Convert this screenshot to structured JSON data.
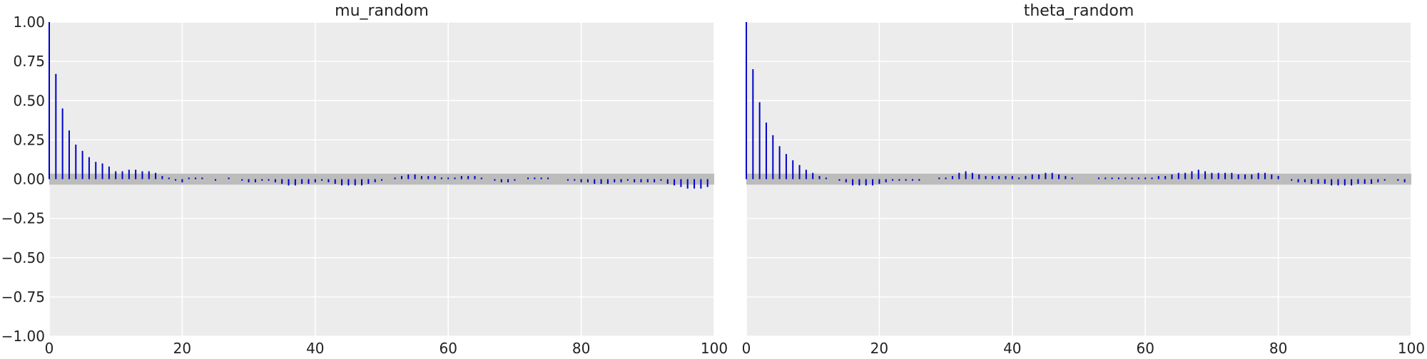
{
  "chart_data": [
    {
      "type": "bar",
      "title": "mu_random",
      "xlabel": "",
      "ylabel": "",
      "xlim": [
        0,
        100
      ],
      "ylim": [
        -1.0,
        1.0
      ],
      "xticks": [
        "0",
        "20",
        "40",
        "60",
        "80",
        "100"
      ],
      "yticks": [
        "1.00",
        "0.75",
        "0.50",
        "0.25",
        "0.00",
        "−0.25",
        "−0.50",
        "−0.75",
        "−1.00"
      ],
      "grid": true,
      "confidence_band": [
        -0.035,
        0.035
      ],
      "lags": [
        0,
        1,
        2,
        3,
        4,
        5,
        6,
        7,
        8,
        9,
        10,
        11,
        12,
        13,
        14,
        15,
        16,
        17,
        18,
        19,
        20,
        21,
        22,
        23,
        24,
        25,
        26,
        27,
        28,
        29,
        30,
        31,
        32,
        33,
        34,
        35,
        36,
        37,
        38,
        39,
        40,
        41,
        42,
        43,
        44,
        45,
        46,
        47,
        48,
        49,
        50,
        51,
        52,
        53,
        54,
        55,
        56,
        57,
        58,
        59,
        60,
        61,
        62,
        63,
        64,
        65,
        66,
        67,
        68,
        69,
        70,
        71,
        72,
        73,
        74,
        75,
        76,
        77,
        78,
        79,
        80,
        81,
        82,
        83,
        84,
        85,
        86,
        87,
        88,
        89,
        90,
        91,
        92,
        93,
        94,
        95,
        96,
        97,
        98,
        99
      ],
      "values": [
        1.0,
        0.67,
        0.45,
        0.31,
        0.22,
        0.18,
        0.14,
        0.11,
        0.1,
        0.08,
        0.05,
        0.05,
        0.06,
        0.06,
        0.05,
        0.05,
        0.04,
        0.02,
        0.01,
        -0.01,
        -0.02,
        0.01,
        0.01,
        0.01,
        0.0,
        -0.01,
        0.0,
        0.01,
        0.0,
        -0.01,
        -0.02,
        -0.02,
        -0.01,
        -0.01,
        -0.02,
        -0.03,
        -0.04,
        -0.04,
        -0.03,
        -0.03,
        -0.02,
        -0.01,
        -0.02,
        -0.03,
        -0.04,
        -0.04,
        -0.04,
        -0.04,
        -0.03,
        -0.02,
        -0.01,
        0.0,
        0.01,
        0.02,
        0.03,
        0.03,
        0.02,
        0.02,
        0.02,
        0.01,
        0.01,
        0.01,
        0.02,
        0.02,
        0.02,
        0.01,
        0.0,
        -0.01,
        -0.02,
        -0.02,
        -0.01,
        0.0,
        0.01,
        0.01,
        0.01,
        0.01,
        0.0,
        0.0,
        -0.01,
        -0.01,
        -0.02,
        -0.02,
        -0.03,
        -0.03,
        -0.03,
        -0.02,
        -0.02,
        -0.01,
        -0.02,
        -0.02,
        -0.02,
        -0.02,
        -0.01,
        -0.03,
        -0.04,
        -0.05,
        -0.06,
        -0.06,
        -0.06,
        -0.05
      ],
      "bar_color": "#0000cc"
    },
    {
      "type": "bar",
      "title": "theta_random",
      "xlabel": "",
      "ylabel": "",
      "xlim": [
        0,
        100
      ],
      "ylim": [
        -1.0,
        1.0
      ],
      "xticks": [
        "0",
        "20",
        "40",
        "60",
        "80",
        "100"
      ],
      "yticks": [],
      "grid": true,
      "confidence_band": [
        -0.035,
        0.035
      ],
      "lags": [
        0,
        1,
        2,
        3,
        4,
        5,
        6,
        7,
        8,
        9,
        10,
        11,
        12,
        13,
        14,
        15,
        16,
        17,
        18,
        19,
        20,
        21,
        22,
        23,
        24,
        25,
        26,
        27,
        28,
        29,
        30,
        31,
        32,
        33,
        34,
        35,
        36,
        37,
        38,
        39,
        40,
        41,
        42,
        43,
        44,
        45,
        46,
        47,
        48,
        49,
        50,
        51,
        52,
        53,
        54,
        55,
        56,
        57,
        58,
        59,
        60,
        61,
        62,
        63,
        64,
        65,
        66,
        67,
        68,
        69,
        70,
        71,
        72,
        73,
        74,
        75,
        76,
        77,
        78,
        79,
        80,
        81,
        82,
        83,
        84,
        85,
        86,
        87,
        88,
        89,
        90,
        91,
        92,
        93,
        94,
        95,
        96,
        97,
        98,
        99
      ],
      "values": [
        1.0,
        0.7,
        0.49,
        0.36,
        0.28,
        0.21,
        0.16,
        0.12,
        0.09,
        0.06,
        0.04,
        0.02,
        0.01,
        0.0,
        -0.01,
        -0.02,
        -0.04,
        -0.04,
        -0.04,
        -0.04,
        -0.03,
        -0.02,
        -0.01,
        -0.01,
        -0.01,
        -0.01,
        -0.01,
        0.0,
        0.0,
        0.01,
        0.01,
        0.02,
        0.04,
        0.05,
        0.04,
        0.03,
        0.02,
        0.02,
        0.02,
        0.02,
        0.02,
        0.01,
        0.02,
        0.03,
        0.03,
        0.04,
        0.04,
        0.03,
        0.02,
        0.01,
        0.0,
        0.0,
        0.0,
        0.01,
        0.01,
        0.01,
        0.01,
        0.01,
        0.01,
        0.01,
        0.01,
        0.01,
        0.02,
        0.02,
        0.03,
        0.04,
        0.04,
        0.05,
        0.06,
        0.05,
        0.04,
        0.04,
        0.04,
        0.04,
        0.03,
        0.03,
        0.03,
        0.04,
        0.04,
        0.03,
        0.02,
        0.0,
        -0.01,
        -0.02,
        -0.02,
        -0.03,
        -0.03,
        -0.03,
        -0.04,
        -0.04,
        -0.04,
        -0.04,
        -0.03,
        -0.03,
        -0.03,
        -0.02,
        -0.01,
        0.0,
        -0.01,
        -0.02,
        -0.02
      ],
      "bar_color": "#0000cc"
    }
  ]
}
